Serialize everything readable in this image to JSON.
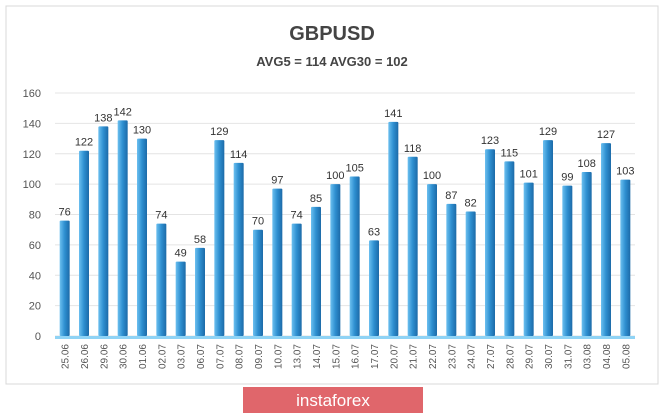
{
  "chart_data": {
    "type": "bar",
    "title": "GBPUSD",
    "subtitle": "AVG5 = 114 AVG30 = 102",
    "xlabel": "",
    "ylabel": "",
    "ylim": [
      0,
      160
    ],
    "yticks": [
      0,
      20,
      40,
      60,
      80,
      100,
      120,
      140,
      160
    ],
    "grid": true,
    "categories": [
      "25.06",
      "26.06",
      "29.06",
      "30.06",
      "01.06",
      "02.07",
      "03.07",
      "06.07",
      "07.07",
      "08.07",
      "09.07",
      "10.07",
      "13.07",
      "14.07",
      "15.07",
      "16.07",
      "17.07",
      "20.07",
      "21.07",
      "22.07",
      "23.07",
      "24.07",
      "27.07",
      "28.07",
      "29.07",
      "30.07",
      "31.07",
      "03.08",
      "04.08",
      "05.08"
    ],
    "values": [
      76,
      122,
      138,
      142,
      130,
      74,
      49,
      58,
      129,
      114,
      70,
      97,
      74,
      85,
      100,
      105,
      63,
      141,
      118,
      100,
      87,
      82,
      123,
      115,
      101,
      129,
      99,
      108,
      127,
      103
    ],
    "bar_color": "#2e8fd0"
  },
  "branding": {
    "logo_text": "instaforex",
    "logo_color": "#e0666b"
  }
}
